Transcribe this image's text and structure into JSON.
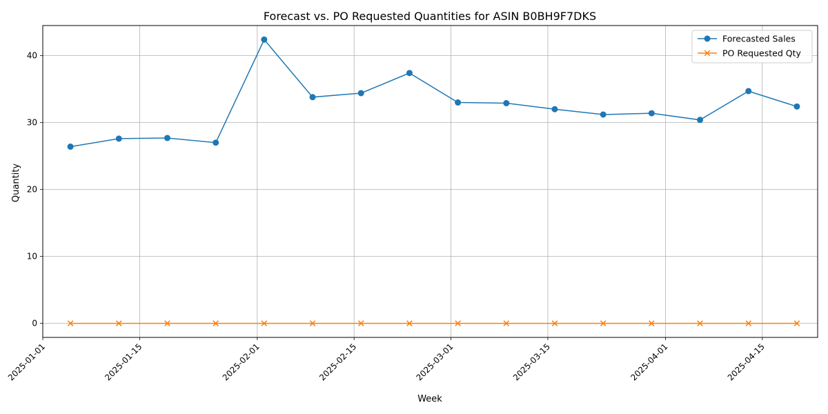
{
  "chart_data": {
    "type": "line",
    "title": "Forecast vs. PO Requested Quantities for ASIN B0BH9F7DKS",
    "xlabel": "Week",
    "ylabel": "Quantity",
    "x": [
      "2025-01-05",
      "2025-01-12",
      "2025-01-19",
      "2025-01-26",
      "2025-02-02",
      "2025-02-09",
      "2025-02-16",
      "2025-02-23",
      "2025-03-02",
      "2025-03-09",
      "2025-03-16",
      "2025-03-23",
      "2025-03-30",
      "2025-04-06",
      "2025-04-13",
      "2025-04-20"
    ],
    "xlim": [
      "2025-01-01",
      "2025-04-23"
    ],
    "xticks": [
      "2025-01-01",
      "2025-01-15",
      "2025-02-01",
      "2025-02-15",
      "2025-03-01",
      "2025-03-15",
      "2025-04-01",
      "2025-04-15"
    ],
    "ylim": [
      -2.1,
      44.5
    ],
    "yticks": [
      0,
      10,
      20,
      30,
      40
    ],
    "grid": true,
    "legend_position": "top-right",
    "series": [
      {
        "name": "Forecasted Sales",
        "color": "#1f77b4",
        "marker": "circle",
        "values": [
          26.4,
          27.6,
          27.7,
          27.0,
          42.4,
          33.8,
          34.4,
          37.4,
          33.0,
          32.9,
          32.0,
          31.2,
          31.4,
          30.4,
          34.7,
          32.4
        ]
      },
      {
        "name": "PO Requested Qty",
        "color": "#ff7f0e",
        "marker": "x",
        "values": [
          0,
          0,
          0,
          0,
          0,
          0,
          0,
          0,
          0,
          0,
          0,
          0,
          0,
          0,
          0,
          0
        ]
      }
    ]
  }
}
